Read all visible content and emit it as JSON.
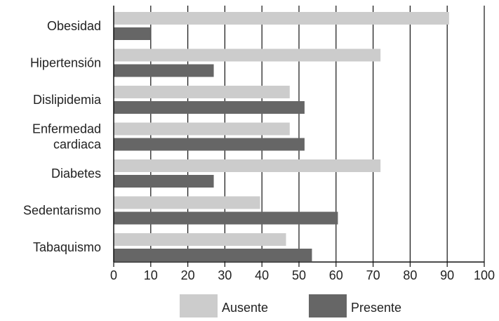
{
  "chart_data": {
    "type": "bar",
    "orientation": "horizontal",
    "categories": [
      [
        "Obesidad"
      ],
      [
        "Hipertensión"
      ],
      [
        "Dislipidemia"
      ],
      [
        "Enfermedad",
        "cardiaca"
      ],
      [
        "Diabetes"
      ],
      [
        "Sedentarismo"
      ],
      [
        "Tabaquismo"
      ]
    ],
    "series": [
      {
        "name": "Ausente",
        "color": "#cccccc",
        "values": [
          90.5,
          72,
          47.5,
          47.5,
          72,
          39.5,
          46.5
        ]
      },
      {
        "name": "Presente",
        "color": "#666666",
        "values": [
          10,
          27,
          51.5,
          51.5,
          27,
          60.5,
          53.5
        ]
      }
    ],
    "xlim": [
      0,
      100
    ],
    "xticks": [
      0,
      10,
      20,
      30,
      40,
      50,
      60,
      70,
      80,
      90,
      100
    ],
    "grid": "vertical",
    "legend_position": "bottom-center",
    "title": "",
    "xlabel": "",
    "ylabel": ""
  }
}
